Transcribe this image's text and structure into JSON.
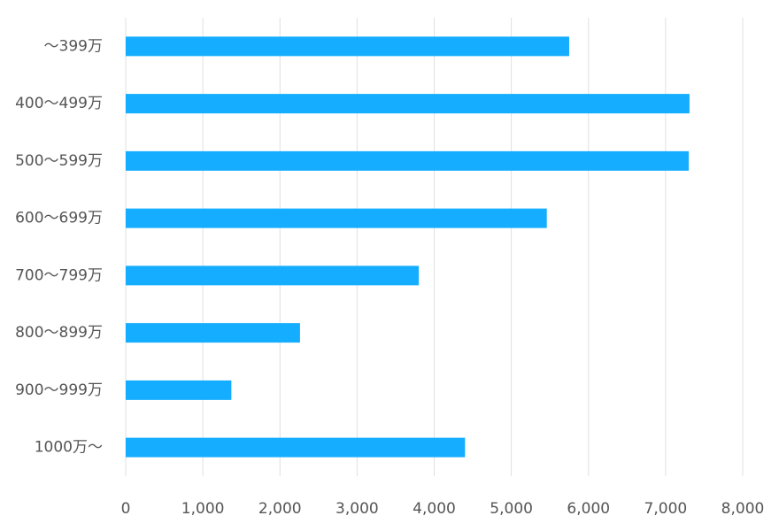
{
  "chart_data": {
    "type": "bar",
    "orientation": "horizontal",
    "categories": [
      "～399万",
      "400～499万",
      "500～599万",
      "600～699万",
      "700～799万",
      "800～899万",
      "900～999万",
      "1000万～"
    ],
    "values": [
      5750,
      7310,
      7300,
      5460,
      3800,
      2260,
      1370,
      4400
    ],
    "color": "#14adff",
    "xlim": [
      0,
      8000
    ],
    "xticks": [
      0,
      {
        "value": 1000,
        "label": "1,000"
      },
      {
        "value": 2000,
        "label": "2,000"
      },
      {
        "value": 3000,
        "label": "3,000"
      },
      {
        "value": 4000,
        "label": "4,000"
      },
      {
        "value": 5000,
        "label": "5,000"
      },
      {
        "value": 6000,
        "label": "6,000"
      },
      {
        "value": 7000,
        "label": "7,000"
      },
      {
        "value": 8000,
        "label": "8,000"
      }
    ],
    "grid": true
  }
}
